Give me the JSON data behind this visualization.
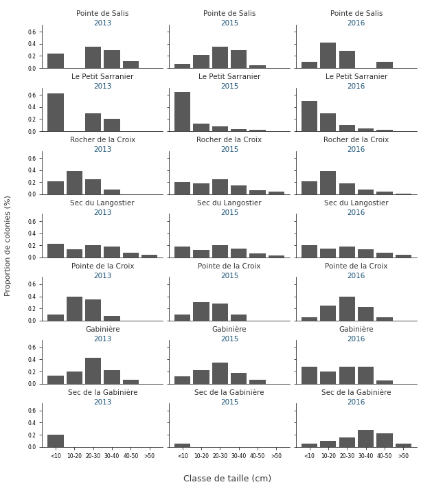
{
  "sites": [
    "Pointe de Salis",
    "Le Petit Sarranier",
    "Rocher de la Croix",
    "Sec du Langostier",
    "Pointe de la Croix",
    "Gabinière",
    "Sec de la Gabinière"
  ],
  "years": [
    "2013",
    "2015",
    "2016"
  ],
  "categories": [
    "<10",
    "10-20",
    "20-30",
    "30-40",
    "40-50",
    ">50"
  ],
  "bar_color": "#595959",
  "site_color": "#333333",
  "year_color": "#1a5276",
  "background": "#ffffff",
  "data": {
    "Pointe de Salis": {
      "2013": [
        0.24,
        0.0,
        0.35,
        0.3,
        0.12,
        0.0
      ],
      "2015": [
        0.07,
        0.22,
        0.35,
        0.3,
        0.05,
        0.0
      ],
      "2016": [
        0.1,
        0.42,
        0.28,
        0.0,
        0.1,
        0.0
      ]
    },
    "Le Petit Sarranier": {
      "2013": [
        0.62,
        0.0,
        0.3,
        0.2,
        0.0,
        0.0
      ],
      "2015": [
        0.65,
        0.13,
        0.08,
        0.03,
        0.02,
        0.0
      ],
      "2016": [
        0.5,
        0.3,
        0.1,
        0.04,
        0.02,
        0.0
      ]
    },
    "Rocher de la Croix": {
      "2013": [
        0.22,
        0.38,
        0.25,
        0.08,
        0.0,
        0.0
      ],
      "2015": [
        0.2,
        0.18,
        0.25,
        0.15,
        0.07,
        0.04
      ],
      "2016": [
        0.22,
        0.38,
        0.18,
        0.08,
        0.04,
        0.01
      ]
    },
    "Sec du Langostier": {
      "2013": [
        0.22,
        0.13,
        0.2,
        0.18,
        0.08,
        0.04
      ],
      "2015": [
        0.18,
        0.12,
        0.2,
        0.15,
        0.07,
        0.03
      ],
      "2016": [
        0.2,
        0.15,
        0.18,
        0.13,
        0.08,
        0.04
      ]
    },
    "Pointe de la Croix": {
      "2013": [
        0.1,
        0.4,
        0.35,
        0.08,
        0.0,
        0.0
      ],
      "2015": [
        0.1,
        0.3,
        0.28,
        0.1,
        0.0,
        0.0
      ],
      "2016": [
        0.05,
        0.25,
        0.4,
        0.22,
        0.06,
        0.0
      ]
    },
    "Gabinière": {
      "2013": [
        0.13,
        0.2,
        0.43,
        0.22,
        0.07,
        0.0
      ],
      "2015": [
        0.12,
        0.22,
        0.35,
        0.18,
        0.06,
        0.0
      ],
      "2016": [
        0.28,
        0.2,
        0.28,
        0.28,
        0.05,
        0.0
      ]
    },
    "Sec de la Gabinière": {
      "2013": [
        0.2,
        0.0,
        0.0,
        0.0,
        0.0,
        0.0
      ],
      "2015": [
        0.05,
        0.0,
        0.0,
        0.0,
        0.0,
        0.0
      ],
      "2016": [
        0.05,
        0.1,
        0.15,
        0.28,
        0.22,
        0.05
      ]
    }
  },
  "ylabel": "Proportion de colonies (%)",
  "xlabel": "Classe de taille (cm)",
  "ylim": [
    0,
    0.72
  ],
  "yticks": [
    0.0,
    0.2,
    0.4,
    0.6
  ],
  "site_fontsize": 7.5,
  "year_fontsize": 7.5,
  "tick_fontsize": 5.5,
  "label_fontsize": 8
}
